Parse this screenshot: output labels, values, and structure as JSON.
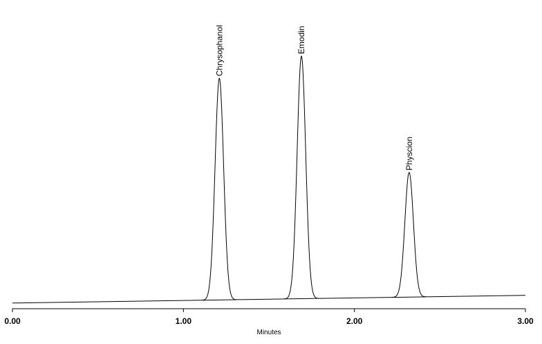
{
  "chart_data": {
    "type": "line",
    "title": "",
    "xlabel": "Minutes",
    "ylabel": "",
    "xlim": [
      0.0,
      3.0
    ],
    "ylim": [
      0,
      100
    ],
    "x_ticks": [
      "0.00",
      "1.00",
      "2.00",
      "3.00"
    ],
    "grid": false,
    "baseline": {
      "x": [
        0.0,
        3.0
      ],
      "y": [
        0.6,
        3.7
      ]
    },
    "peaks": [
      {
        "name": "Chrysophanol",
        "retention_time": 1.21,
        "height": 90.8,
        "width": 0.025
      },
      {
        "name": "Emodin",
        "retention_time": 1.69,
        "height": 99.7,
        "width": 0.025
      },
      {
        "name": "Physcion",
        "retention_time": 2.32,
        "height": 53.0,
        "width": 0.025
      }
    ]
  }
}
